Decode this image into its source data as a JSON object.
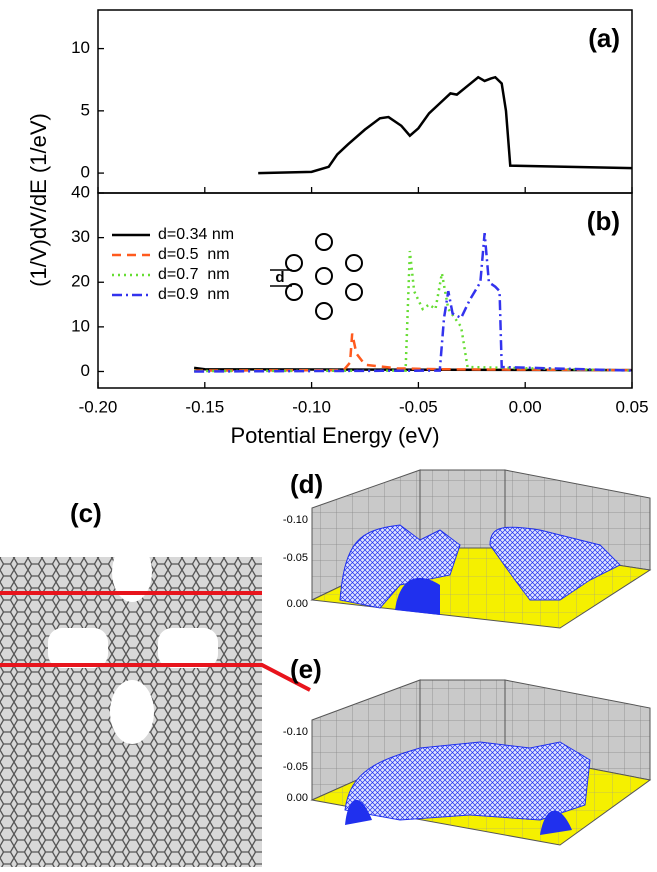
{
  "chart_data": [
    {
      "type": "line",
      "annotation": "(a)",
      "ylabel": "(1/V)dV/dE (1/eV)",
      "xlim": [
        -0.2,
        0.05
      ],
      "xticks": [
        -0.2,
        -0.15,
        -0.1,
        -0.05,
        0,
        0.05
      ],
      "ylim": [
        -1.6,
        13.1
      ],
      "yticks": [
        0,
        5,
        10
      ],
      "series": [
        {
          "color": "#000000",
          "style": "solid",
          "x": [
            -0.125,
            -0.1,
            -0.092,
            -0.088,
            -0.083,
            -0.075,
            -0.068,
            -0.064,
            -0.058,
            -0.054,
            -0.05,
            -0.045,
            -0.04,
            -0.035,
            -0.032,
            -0.027,
            -0.022,
            -0.019,
            -0.016,
            -0.014,
            -0.011,
            -0.009,
            -0.007,
            0.05
          ],
          "values": [
            0,
            0.1,
            0.5,
            1.5,
            2.3,
            3.5,
            4.4,
            4.5,
            3.8,
            3.0,
            3.6,
            4.8,
            5.6,
            6.4,
            6.3,
            7.0,
            7.7,
            7.4,
            7.6,
            7.7,
            7.2,
            5.0,
            0.6,
            0.4
          ]
        }
      ]
    },
    {
      "type": "line",
      "annotation": "(b)",
      "xlabel": "Potential Energy (eV)",
      "inset_label": "d",
      "legend": "upper left",
      "xlim": [
        -0.2,
        0.05
      ],
      "xticks": [
        {
          "value": -0.2,
          "label": "-0.20"
        },
        {
          "value": -0.15,
          "label": "-0.15"
        },
        {
          "value": -0.1,
          "label": "-0.10"
        },
        {
          "value": -0.05,
          "label": "-0.05"
        },
        {
          "value": 0,
          "label": "0.00"
        },
        {
          "value": 0.05,
          "label": "0.05"
        }
      ],
      "ylim": [
        -3.7,
        40
      ],
      "yticks": [
        0,
        10,
        20,
        30,
        40
      ],
      "series": [
        {
          "name": "d=0.34 nm",
          "color": "#000000",
          "style": "solid",
          "x": [
            -0.155,
            -0.15,
            0.05
          ],
          "values": [
            0.8,
            0.5,
            0.3
          ]
        },
        {
          "name": "d=0.5  nm",
          "color": "#ff5a1e",
          "style": "dashed",
          "x": [
            -0.155,
            -0.085,
            -0.082,
            -0.081,
            -0.079,
            -0.075,
            -0.06,
            -0.04,
            0.05
          ],
          "values": [
            0.2,
            0.3,
            2,
            8.5,
            4,
            1.5,
            0.7,
            0.5,
            0.3
          ]
        },
        {
          "name": "d=0.7  nm",
          "color": "#66dd33",
          "style": "dotted",
          "x": [
            -0.155,
            -0.056,
            -0.054,
            -0.052,
            -0.048,
            -0.045,
            -0.042,
            -0.039,
            -0.036,
            -0.03,
            -0.027,
            0.05
          ],
          "values": [
            0.1,
            0.2,
            27,
            18,
            14,
            15,
            14,
            22,
            14,
            10,
            1,
            0.2
          ]
        },
        {
          "name": "d=0.9  nm",
          "color": "#3333ee",
          "style": "dashdot",
          "x": [
            -0.155,
            -0.04,
            -0.038,
            -0.036,
            -0.034,
            -0.03,
            -0.026,
            -0.021,
            -0.019,
            -0.017,
            -0.014,
            -0.012,
            -0.011,
            0.05
          ],
          "values": [
            0,
            0.2,
            12,
            18,
            13,
            12,
            16,
            20,
            31,
            20,
            19,
            18,
            1,
            0.2
          ]
        }
      ]
    }
  ],
  "panels": {
    "c": {
      "label": "(c)"
    },
    "d": {
      "label": "(d)",
      "zticks": [
        "-0.10",
        "-0.05",
        "0.00"
      ]
    },
    "e": {
      "label": "(e)",
      "zticks": [
        "-0.10",
        "-0.05",
        "0.00"
      ]
    }
  }
}
